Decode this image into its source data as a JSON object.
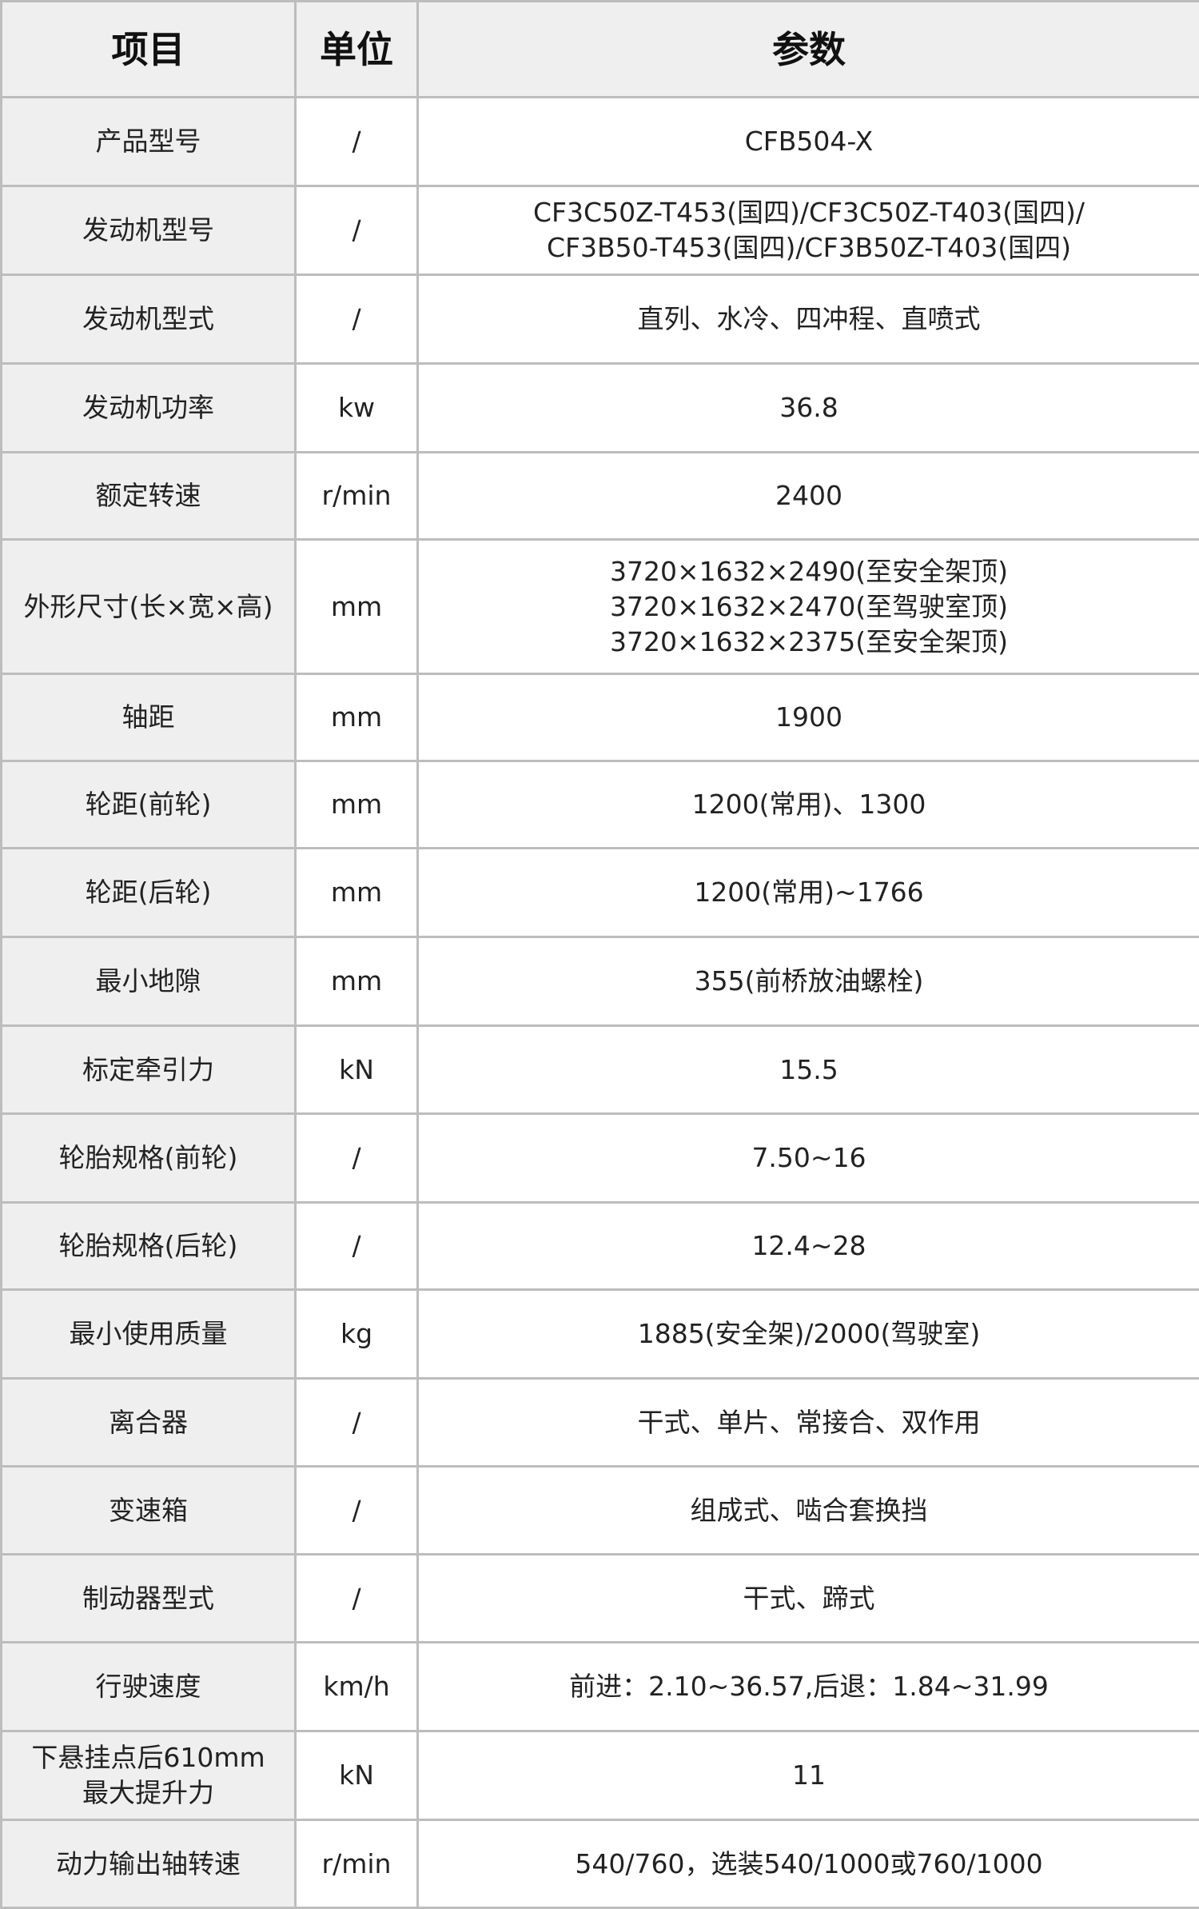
{
  "headers": {
    "item": "项目",
    "unit": "单位",
    "param": "参数"
  },
  "rows": [
    {
      "item": [
        "产品型号"
      ],
      "unit": "/",
      "value": [
        "CFB504-X"
      ]
    },
    {
      "item": [
        "发动机型号"
      ],
      "unit": "/",
      "value": [
        "CF3C50Z-T453(国四)/CF3C50Z-T403(国四)/",
        "CF3B50-T453(国四)/CF3B50Z-T403(国四)"
      ]
    },
    {
      "item": [
        "发动机型式"
      ],
      "unit": "/",
      "value": [
        "直列、水冷、四冲程、直喷式"
      ]
    },
    {
      "item": [
        "发动机功率"
      ],
      "unit": "kw",
      "value": [
        "36.8"
      ]
    },
    {
      "item": [
        "额定转速"
      ],
      "unit": "r/min",
      "value": [
        "2400"
      ]
    },
    {
      "item": [
        "外形尺寸(长×宽×高)"
      ],
      "unit": "mm",
      "value": [
        "3720×1632×2490(至安全架顶)",
        "3720×1632×2470(至驾驶室顶)",
        "3720×1632×2375(至安全架顶)"
      ]
    },
    {
      "item": [
        "轴距"
      ],
      "unit": "mm",
      "value": [
        "1900"
      ]
    },
    {
      "item": [
        "轮距(前轮)"
      ],
      "unit": "mm",
      "value": [
        "1200(常用)、1300"
      ]
    },
    {
      "item": [
        "轮距(后轮)"
      ],
      "unit": "mm",
      "value": [
        "1200(常用)~1766"
      ]
    },
    {
      "item": [
        "最小地隙"
      ],
      "unit": "mm",
      "value": [
        "355(前桥放油螺栓)"
      ]
    },
    {
      "item": [
        "标定牵引力"
      ],
      "unit": "kN",
      "value": [
        "15.5"
      ]
    },
    {
      "item": [
        "轮胎规格(前轮)"
      ],
      "unit": "/",
      "value": [
        "7.50~16"
      ]
    },
    {
      "item": [
        "轮胎规格(后轮)"
      ],
      "unit": "/",
      "value": [
        "12.4~28"
      ]
    },
    {
      "item": [
        "最小使用质量"
      ],
      "unit": "kg",
      "value": [
        "1885(安全架)/2000(驾驶室)"
      ]
    },
    {
      "item": [
        "离合器"
      ],
      "unit": "/",
      "value": [
        "干式、单片、常接合、双作用"
      ]
    },
    {
      "item": [
        "变速箱"
      ],
      "unit": "/",
      "value": [
        "组成式、啮合套换挡"
      ]
    },
    {
      "item": [
        "制动器型式"
      ],
      "unit": "/",
      "value": [
        "干式、蹄式"
      ]
    },
    {
      "item": [
        "行驶速度"
      ],
      "unit": "km/h",
      "value": [
        "前进：2.10~36.57,后退：1.84~31.99"
      ]
    },
    {
      "item": [
        "下悬挂点后610mm",
        "最大提升力"
      ],
      "unit": "kN",
      "value": [
        "11"
      ]
    },
    {
      "item": [
        "动力输出轴转速"
      ],
      "unit": "r/min",
      "value": [
        "540/760，选装540/1000或760/1000"
      ]
    }
  ]
}
